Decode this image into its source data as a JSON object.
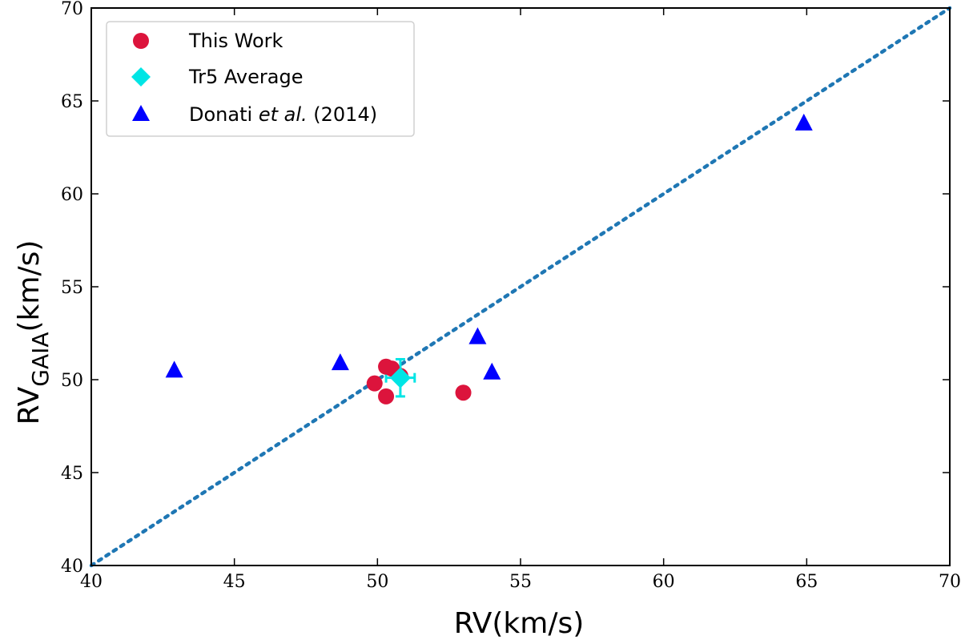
{
  "chart_data": {
    "type": "scatter",
    "title": "",
    "xlabel": "RV(km/s)",
    "ylabel_main": "RV",
    "ylabel_sub": "GAIA",
    "ylabel_tail": "(km/s)",
    "xlim": [
      40,
      70
    ],
    "ylim": [
      40,
      70
    ],
    "xticks": [
      40,
      45,
      50,
      55,
      60,
      65,
      70
    ],
    "yticks": [
      40,
      45,
      50,
      55,
      60,
      65,
      70
    ],
    "grid": false,
    "legend_position": "top-left",
    "reference_line": {
      "name": "one-to-one",
      "x": [
        40,
        70
      ],
      "y": [
        40,
        70
      ],
      "style": "dotted",
      "color": "#1f77b4"
    },
    "series": [
      {
        "name": "This Work",
        "marker": "circle",
        "color": "#dc143c",
        "points": [
          {
            "x": 50.3,
            "y": 50.7
          },
          {
            "x": 50.5,
            "y": 50.6
          },
          {
            "x": 50.8,
            "y": 50.2
          },
          {
            "x": 49.9,
            "y": 49.8
          },
          {
            "x": 50.3,
            "y": 49.1
          },
          {
            "x": 53.0,
            "y": 49.3
          }
        ]
      },
      {
        "name": "Tr5 Average",
        "marker": "diamond",
        "color": "#00e5e5",
        "points": [
          {
            "x": 50.8,
            "y": 50.1,
            "xerr": 0.5,
            "yerr": 1.0
          }
        ]
      },
      {
        "name": "Donati",
        "name_italic": "et al.",
        "name_tail": "(2014)",
        "marker": "triangle",
        "color": "#0000ff",
        "points": [
          {
            "x": 42.9,
            "y": 50.5
          },
          {
            "x": 48.7,
            "y": 50.9
          },
          {
            "x": 53.5,
            "y": 52.3
          },
          {
            "x": 54.0,
            "y": 50.4
          },
          {
            "x": 64.9,
            "y": 63.8
          }
        ]
      }
    ]
  }
}
